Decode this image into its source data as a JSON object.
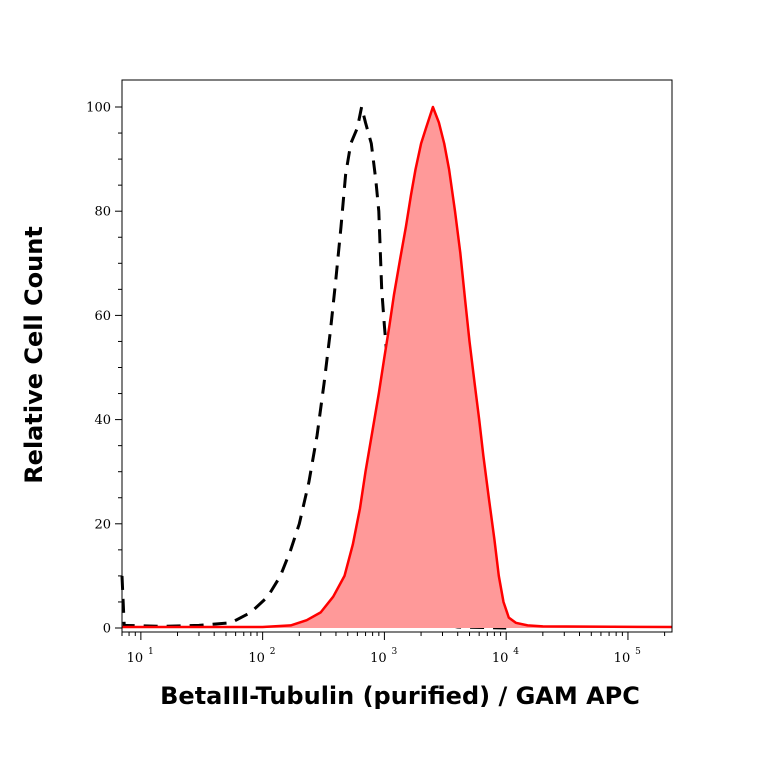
{
  "chart_data": {
    "type": "area",
    "xlabel": "BetaIII-Tubulin (purified) / GAM APC",
    "ylabel": "Relative Cell Count",
    "x_scale": "log",
    "xlim": [
      7,
      230000
    ],
    "ylim": [
      0,
      100
    ],
    "y_ticks": [
      "0",
      "20",
      "40",
      "60",
      "80",
      "100"
    ],
    "x_ticks": [
      {
        "value": 10,
        "base": "10",
        "exp": "1"
      },
      {
        "value": 100,
        "base": "10",
        "exp": "2"
      },
      {
        "value": 1000,
        "base": "10",
        "exp": "3"
      },
      {
        "value": 10000,
        "base": "10",
        "exp": "4"
      },
      {
        "value": 100000,
        "base": "10",
        "exp": "5"
      }
    ],
    "grid": false,
    "series": [
      {
        "style": "dashed-line",
        "color": "#000000",
        "points": [
          [
            7,
            10
          ],
          [
            7.3,
            0.5
          ],
          [
            15,
            0.3
          ],
          [
            30,
            0.5
          ],
          [
            55,
            1
          ],
          [
            80,
            3
          ],
          [
            110,
            6
          ],
          [
            140,
            10
          ],
          [
            170,
            15
          ],
          [
            200,
            20
          ],
          [
            240,
            28
          ],
          [
            280,
            37
          ],
          [
            320,
            47
          ],
          [
            360,
            57
          ],
          [
            400,
            67
          ],
          [
            440,
            77
          ],
          [
            480,
            87
          ],
          [
            530,
            93
          ],
          [
            600,
            96
          ],
          [
            650,
            100
          ],
          [
            700,
            97
          ],
          [
            780,
            93
          ],
          [
            850,
            86
          ],
          [
            900,
            80
          ],
          [
            950,
            65
          ],
          [
            1000,
            58
          ],
          [
            1050,
            52
          ],
          [
            1150,
            45
          ],
          [
            1250,
            38
          ],
          [
            1350,
            30
          ],
          [
            1450,
            24
          ],
          [
            1550,
            18
          ],
          [
            1700,
            12
          ],
          [
            1850,
            7
          ],
          [
            2000,
            4
          ],
          [
            2300,
            2
          ],
          [
            2700,
            1
          ],
          [
            4000,
            0.2
          ],
          [
            10000,
            0
          ]
        ]
      },
      {
        "style": "filled-area",
        "color": "#ff0000",
        "fill": "#ff9999",
        "points": [
          [
            7,
            0.2
          ],
          [
            100,
            0.2
          ],
          [
            170,
            0.5
          ],
          [
            230,
            1.5
          ],
          [
            300,
            3
          ],
          [
            380,
            6
          ],
          [
            470,
            10
          ],
          [
            550,
            16
          ],
          [
            630,
            23
          ],
          [
            700,
            30
          ],
          [
            800,
            38
          ],
          [
            900,
            45
          ],
          [
            1000,
            52
          ],
          [
            1100,
            58
          ],
          [
            1200,
            64
          ],
          [
            1350,
            71
          ],
          [
            1500,
            77
          ],
          [
            1650,
            83
          ],
          [
            1800,
            88
          ],
          [
            2000,
            93
          ],
          [
            2200,
            96
          ],
          [
            2500,
            100
          ],
          [
            2800,
            97
          ],
          [
            3100,
            93
          ],
          [
            3400,
            88
          ],
          [
            3800,
            80
          ],
          [
            4200,
            72
          ],
          [
            4600,
            63
          ],
          [
            5000,
            55
          ],
          [
            5500,
            47
          ],
          [
            6000,
            40
          ],
          [
            6500,
            33
          ],
          [
            7200,
            25
          ],
          [
            8000,
            17
          ],
          [
            8700,
            10
          ],
          [
            9500,
            5
          ],
          [
            10500,
            2
          ],
          [
            12000,
            1
          ],
          [
            15000,
            0.5
          ],
          [
            20000,
            0.3
          ],
          [
            230000,
            0.2
          ]
        ]
      }
    ]
  }
}
